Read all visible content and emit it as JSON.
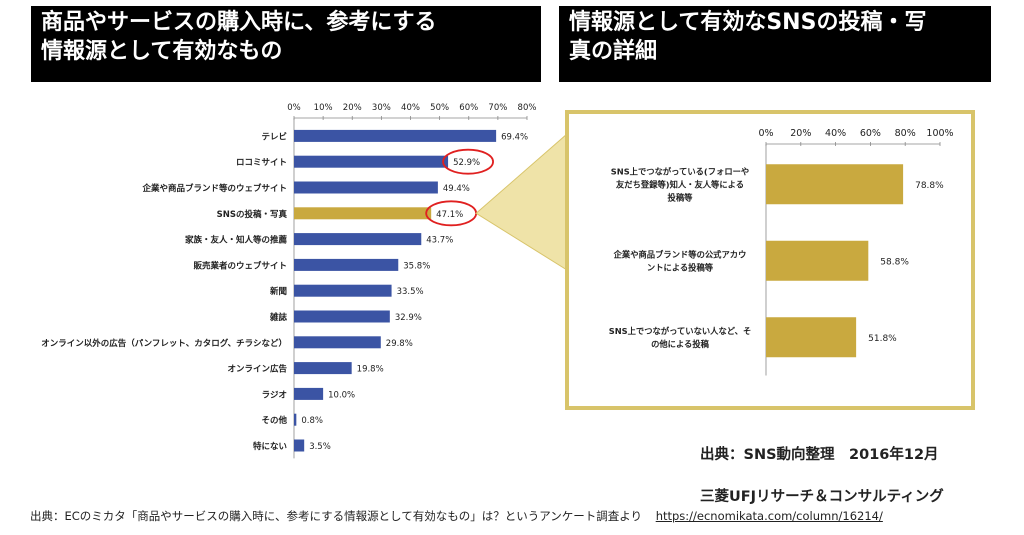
{
  "left_title": "商品やサービスの購入時に、参考にする\n情報源として有効なもの",
  "right_title": "情報源として有効なSNSの投稿・写\n真の詳細",
  "source_note": {
    "line1": "出典：SNS動向整理　2016年12月",
    "line2": "三菱UFJリサーチ＆コンサルティング"
  },
  "caption": {
    "text": "出典：ECのミカタ「商品やサービスの購入時に、参考にする情報源として有効なもの」は？というアンケート調査より",
    "link": "https://ecnomikata.com/column/16214/"
  },
  "colors": {
    "blue": "#3b54a4",
    "gold": "#c9a93f",
    "highlight_ring": "#e02020",
    "panel_border": "#d8c46a"
  },
  "chart_data": [
    {
      "type": "bar",
      "orientation": "horizontal",
      "title": "商品やサービスの購入時に、参考にする情報源として有効なもの",
      "xlim": [
        0,
        80
      ],
      "ticks": [
        "0%",
        "10%",
        "20%",
        "30%",
        "40%",
        "50%",
        "60%",
        "70%",
        "80%"
      ],
      "tick_values": [
        0,
        10,
        20,
        30,
        40,
        50,
        60,
        70,
        80
      ],
      "categories": [
        "テレビ",
        "ロコミサイト",
        "企業や商品ブランド等のウェブサイト",
        "SNSの投稿・写真",
        "家族・友人・知人等の推薦",
        "販売業者のウェブサイト",
        "新聞",
        "雑誌",
        "オンライン以外の広告（パンフレット、カタログ、チラシなど）",
        "オンライン広告",
        "ラジオ",
        "その他",
        "特にない"
      ],
      "values": [
        69.4,
        52.9,
        49.4,
        47.1,
        43.7,
        35.8,
        33.5,
        32.9,
        29.8,
        19.8,
        10.0,
        0.8,
        3.5
      ],
      "labels": [
        "69.4%",
        "52.9%",
        "49.4%",
        "47.1%",
        "43.7%",
        "35.8%",
        "33.5%",
        "32.9%",
        "29.8%",
        "19.8%",
        "10.0%",
        "0.8%",
        "3.5%"
      ],
      "highlight_index": 3,
      "circled_indices": [
        1,
        3
      ]
    },
    {
      "type": "bar",
      "orientation": "horizontal",
      "title": "情報源として有効なSNSの投稿・写真の詳細",
      "xlim": [
        0,
        100
      ],
      "ticks": [
        "0%",
        "20%",
        "40%",
        "60%",
        "80%",
        "100%"
      ],
      "tick_values": [
        0,
        20,
        40,
        60,
        80,
        100
      ],
      "categories": [
        [
          "SNS上でつながっている(フォローや",
          "友だち登録等)知人・友人等による",
          "投稿等"
        ],
        [
          "企業や商品ブランド等の公式アカウ",
          "ントによる投稿等"
        ],
        [
          "SNS上でつながっていない人など、そ",
          "の他による投稿"
        ]
      ],
      "values": [
        78.8,
        58.8,
        51.8
      ],
      "labels": [
        "78.8%",
        "58.8%",
        "51.8%"
      ]
    }
  ]
}
